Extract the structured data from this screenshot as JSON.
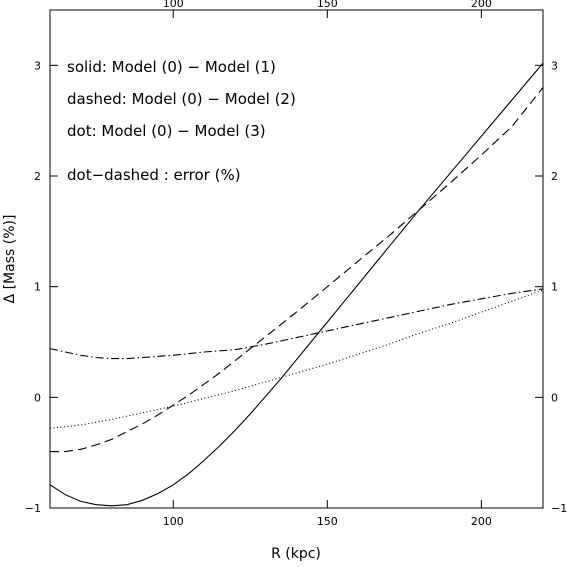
{
  "chart_data": {
    "type": "line",
    "title": "",
    "xlabel": "R (kpc)",
    "ylabel": "Δ [Mass (%)]",
    "xlim": [
      60,
      220
    ],
    "ylim": [
      -1,
      3.5
    ],
    "grid": false,
    "legend_placement": "top-left",
    "x_ticks": [
      {
        "value": 100,
        "label": "100"
      },
      {
        "value": 150,
        "label": "150"
      },
      {
        "value": 200,
        "label": "200"
      }
    ],
    "y_ticks": [
      {
        "value": -1,
        "label": "−1"
      },
      {
        "value": 0,
        "label": "0"
      },
      {
        "value": 1,
        "label": "1"
      },
      {
        "value": 2,
        "label": "2"
      },
      {
        "value": 3,
        "label": "3"
      }
    ],
    "legend_lines": [
      "solid: Model (0) − Model (1)",
      "dashed: Model (0) − Model (2)",
      "dot: Model (0) − Model (3)",
      "dot−dashed : error (%)"
    ],
    "series": [
      {
        "style": "solid",
        "x": [
          60,
          65,
          70,
          75,
          80,
          85,
          90,
          95,
          100,
          105,
          110,
          115,
          120,
          125,
          130,
          135,
          140,
          145,
          150,
          155,
          160,
          170,
          180,
          190,
          200,
          210,
          220
        ],
        "y": [
          -0.79,
          -0.88,
          -0.94,
          -0.97,
          -0.98,
          -0.97,
          -0.93,
          -0.87,
          -0.79,
          -0.69,
          -0.57,
          -0.44,
          -0.3,
          -0.15,
          0.01,
          0.17,
          0.34,
          0.51,
          0.68,
          0.85,
          1.02,
          1.36,
          1.7,
          2.03,
          2.36,
          2.69,
          3.02
        ]
      },
      {
        "style": "dashed",
        "x": [
          60,
          65,
          70,
          75,
          80,
          85,
          90,
          95,
          100,
          105,
          110,
          115,
          120,
          125,
          130,
          140,
          150,
          160,
          170,
          180,
          190,
          200,
          210,
          220
        ],
        "y": [
          -0.49,
          -0.49,
          -0.47,
          -0.43,
          -0.38,
          -0.31,
          -0.24,
          -0.16,
          -0.07,
          0.02,
          0.12,
          0.22,
          0.33,
          0.44,
          0.55,
          0.77,
          1.0,
          1.23,
          1.46,
          1.7,
          1.94,
          2.19,
          2.45,
          2.8
        ]
      },
      {
        "style": "dotted",
        "x": [
          60,
          70,
          80,
          90,
          100,
          110,
          120,
          130,
          140,
          150,
          160,
          170,
          180,
          190,
          200,
          210,
          220
        ],
        "y": [
          -0.28,
          -0.25,
          -0.2,
          -0.14,
          -0.08,
          -0.01,
          0.06,
          0.14,
          0.22,
          0.3,
          0.39,
          0.48,
          0.58,
          0.67,
          0.77,
          0.87,
          0.97
        ]
      },
      {
        "style": "dot-dashed",
        "x": [
          60,
          65,
          70,
          75,
          80,
          85,
          90,
          100,
          110,
          120,
          130,
          140,
          150,
          160,
          170,
          180,
          190,
          200,
          210,
          220
        ],
        "y": [
          0.44,
          0.41,
          0.38,
          0.36,
          0.35,
          0.35,
          0.36,
          0.38,
          0.41,
          0.43,
          0.48,
          0.54,
          0.6,
          0.66,
          0.72,
          0.78,
          0.84,
          0.89,
          0.94,
          0.98
        ]
      }
    ]
  }
}
